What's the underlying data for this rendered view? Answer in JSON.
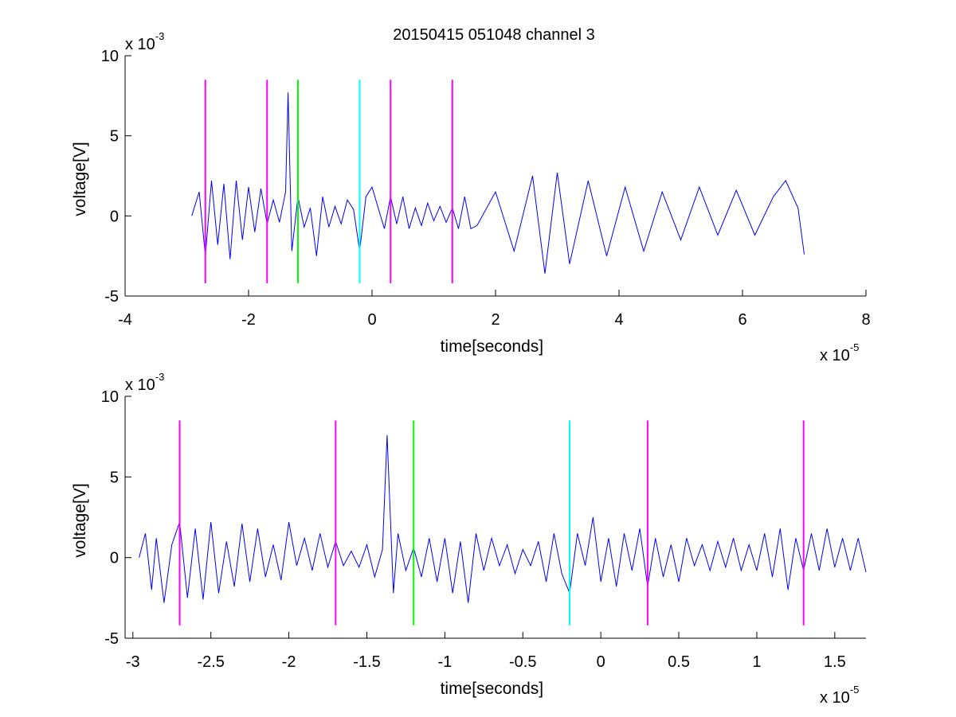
{
  "figure": {
    "title": "20150415 051048 channel 3"
  },
  "chart_data": [
    {
      "type": "line",
      "title": "20150415 051048 channel 3",
      "xlabel": "time[seconds]",
      "ylabel": "voltage[V]",
      "xlim": [
        -4e-05,
        8e-05
      ],
      "ylim": [
        -0.005,
        0.01
      ],
      "x_ticks": [
        -4e-05,
        -2e-05,
        0,
        2e-05,
        4e-05,
        6e-05,
        8e-05
      ],
      "x_tick_labels": [
        "-4",
        "-2",
        "0",
        "2",
        "4",
        "6",
        "8"
      ],
      "y_ticks": [
        -0.005,
        0,
        0.005,
        0.01
      ],
      "y_tick_labels": [
        "-5",
        "0",
        "5",
        "10"
      ],
      "x_exponent_label": "x 10",
      "x_exponent": "-5",
      "y_exponent_label": "x 10",
      "y_exponent": "-3",
      "grid": false,
      "series": [
        {
          "color": "#0000ff",
          "x": [
            -2.92e-05,
            -2.8e-05,
            -2.7e-05,
            -2.6e-05,
            -2.5e-05,
            -2.4e-05,
            -2.3e-05,
            -2.2e-05,
            -2.1e-05,
            -2e-05,
            -1.9e-05,
            -1.8e-05,
            -1.7e-05,
            -1.6e-05,
            -1.5e-05,
            -1.4e-05,
            -1.36e-05,
            -1.3e-05,
            -1.2e-05,
            -1.1e-05,
            -1e-05,
            -9e-06,
            -8e-06,
            -7e-06,
            -6e-06,
            -5e-06,
            -4e-06,
            -3e-06,
            -2e-06,
            -1e-06,
            0,
            1e-06,
            2e-06,
            3e-06,
            4e-06,
            5e-06,
            6e-06,
            7e-06,
            8e-06,
            9e-06,
            1e-05,
            1.1e-05,
            1.2e-05,
            1.3e-05,
            1.4e-05,
            1.5e-05,
            1.6e-05,
            1.7e-05,
            2e-05,
            2.3e-05,
            2.6e-05,
            2.8e-05,
            3e-05,
            3.2e-05,
            3.5e-05,
            3.8e-05,
            4.1e-05,
            4.4e-05,
            4.7e-05,
            5e-05,
            5.3e-05,
            5.6e-05,
            5.9e-05,
            6.2e-05,
            6.5e-05,
            6.7e-05,
            6.9e-05,
            7e-05
          ],
          "y": [
            0.0,
            0.0015,
            -0.0025,
            0.0022,
            -0.0018,
            0.002,
            -0.0027,
            0.0022,
            -0.0015,
            0.0018,
            -0.001,
            0.0017,
            -0.0005,
            0.001,
            -0.0004,
            0.0015,
            0.0077,
            -0.0022,
            0.0012,
            -0.0007,
            0.0005,
            -0.0025,
            0.0012,
            -0.0007,
            0.0006,
            -0.0005,
            0.001,
            0.0004,
            -0.0022,
            0.0012,
            0.0018,
            0.0005,
            -0.0008,
            0.0012,
            -0.0005,
            0.0012,
            -0.0008,
            0.0005,
            -0.0006,
            0.0008,
            -0.0003,
            0.0006,
            -0.0004,
            0.0005,
            -0.0008,
            0.0012,
            -0.0008,
            -0.0006,
            0.0015,
            -0.0022,
            0.0025,
            -0.0036,
            0.0027,
            -0.003,
            0.0022,
            -0.0025,
            0.0018,
            -0.0022,
            0.0015,
            -0.0015,
            0.0018,
            -0.0012,
            0.0016,
            -0.0012,
            0.0012,
            0.0022,
            0.0005,
            -0.0024
          ]
        }
      ],
      "vlines": [
        {
          "x": -2.7e-05,
          "color": "#ff00ff"
        },
        {
          "x": -1.7e-05,
          "color": "#ff00ff"
        },
        {
          "x": -1.2e-05,
          "color": "#00ff00"
        },
        {
          "x": -2e-06,
          "color": "#00ffff"
        },
        {
          "x": 3e-06,
          "color": "#ff00ff"
        },
        {
          "x": 1.3e-05,
          "color": "#ff00ff"
        }
      ],
      "vline_range": [
        -0.0042,
        0.0085
      ]
    },
    {
      "type": "line",
      "title": "",
      "xlabel": "time[seconds]",
      "ylabel": "voltage[V]",
      "xlim": [
        -3.05e-05,
        1.7e-05
      ],
      "ylim": [
        -0.005,
        0.01
      ],
      "x_ticks": [
        -3e-05,
        -2.5e-05,
        -2e-05,
        -1.5e-05,
        -1e-05,
        -5e-06,
        0,
        5e-06,
        1e-05,
        1.5e-05
      ],
      "x_tick_labels": [
        "-3",
        "-2.5",
        "-2",
        "-1.5",
        "-1",
        "-0.5",
        "0",
        "0.5",
        "1",
        "1.5"
      ],
      "y_ticks": [
        -0.005,
        0,
        0.005,
        0.01
      ],
      "y_tick_labels": [
        "-5",
        "0",
        "5",
        "10"
      ],
      "x_exponent_label": "x 10",
      "x_exponent": "-5",
      "y_exponent_label": "x 10",
      "y_exponent": "-3",
      "grid": false,
      "series": [
        {
          "color": "#0000ff",
          "x": [
            -2.96e-05,
            -2.92e-05,
            -2.88e-05,
            -2.85e-05,
            -2.8e-05,
            -2.75e-05,
            -2.7e-05,
            -2.65e-05,
            -2.6e-05,
            -2.55e-05,
            -2.5e-05,
            -2.45e-05,
            -2.4e-05,
            -2.35e-05,
            -2.3e-05,
            -2.25e-05,
            -2.2e-05,
            -2.15e-05,
            -2.1e-05,
            -2.05e-05,
            -2e-05,
            -1.95e-05,
            -1.9e-05,
            -1.85e-05,
            -1.8e-05,
            -1.75e-05,
            -1.7e-05,
            -1.65e-05,
            -1.6e-05,
            -1.55e-05,
            -1.5e-05,
            -1.45e-05,
            -1.4e-05,
            -1.37e-05,
            -1.33e-05,
            -1.3e-05,
            -1.25e-05,
            -1.2e-05,
            -1.15e-05,
            -1.1e-05,
            -1.05e-05,
            -1e-05,
            -9.5e-06,
            -9e-06,
            -8.5e-06,
            -8e-06,
            -7.5e-06,
            -7e-06,
            -6.5e-06,
            -6e-06,
            -5.5e-06,
            -5e-06,
            -4.5e-06,
            -4e-06,
            -3.5e-06,
            -3e-06,
            -2.5e-06,
            -2e-06,
            -1.5e-06,
            -1e-06,
            -5e-07,
            0,
            5e-07,
            1e-06,
            1.5e-06,
            2e-06,
            2.5e-06,
            3e-06,
            3.5e-06,
            4e-06,
            4.5e-06,
            5e-06,
            5.5e-06,
            6e-06,
            6.5e-06,
            7e-06,
            7.5e-06,
            8e-06,
            8.5e-06,
            9e-06,
            9.5e-06,
            1e-05,
            1.05e-05,
            1.1e-05,
            1.15e-05,
            1.2e-05,
            1.25e-05,
            1.3e-05,
            1.35e-05,
            1.4e-05,
            1.45e-05,
            1.5e-05,
            1.55e-05,
            1.6e-05,
            1.65e-05,
            1.7e-05
          ],
          "y": [
            0.0,
            0.0015,
            -0.002,
            0.0012,
            -0.0028,
            0.0008,
            0.0022,
            -0.0025,
            0.0018,
            -0.0026,
            0.0022,
            -0.0022,
            0.001,
            -0.0018,
            0.0021,
            -0.0015,
            0.0018,
            -0.0012,
            0.0008,
            -0.0014,
            0.0022,
            -0.0005,
            0.0012,
            -0.0008,
            0.0015,
            -0.0006,
            0.001,
            -0.0005,
            0.0004,
            -0.0006,
            0.0008,
            -0.0012,
            0.0005,
            0.0076,
            -0.0022,
            0.0015,
            -0.0008,
            0.0006,
            -0.0012,
            0.0012,
            -0.0015,
            0.0012,
            -0.0022,
            0.001,
            -0.0028,
            0.0015,
            -0.0008,
            0.0012,
            -0.0005,
            0.0008,
            -0.001,
            0.0005,
            -0.0005,
            0.001,
            -0.0015,
            0.0015,
            -0.001,
            -0.0022,
            0.0015,
            -0.0005,
            0.0025,
            -0.0015,
            0.0012,
            -0.0018,
            0.0015,
            -0.0008,
            0.0018,
            -0.0018,
            0.0012,
            -0.0012,
            0.0008,
            -0.0015,
            0.0012,
            -0.0005,
            0.0008,
            -0.0008,
            0.001,
            -0.0006,
            0.0012,
            -0.0008,
            0.0008,
            -0.0008,
            0.0015,
            -0.0012,
            0.0018,
            -0.002,
            0.0012,
            -0.0008,
            0.0015,
            -0.0008,
            0.0018,
            -0.0006,
            0.0012,
            -0.0008,
            0.0012,
            -0.0009
          ]
        }
      ],
      "vlines": [
        {
          "x": -2.7e-05,
          "color": "#ff00ff"
        },
        {
          "x": -1.7e-05,
          "color": "#ff00ff"
        },
        {
          "x": -1.2e-05,
          "color": "#00ff00"
        },
        {
          "x": -2e-06,
          "color": "#00ffff"
        },
        {
          "x": 3e-06,
          "color": "#ff00ff"
        },
        {
          "x": 1.3e-05,
          "color": "#ff00ff"
        }
      ],
      "vline_range": [
        -0.0042,
        0.0085
      ]
    }
  ]
}
